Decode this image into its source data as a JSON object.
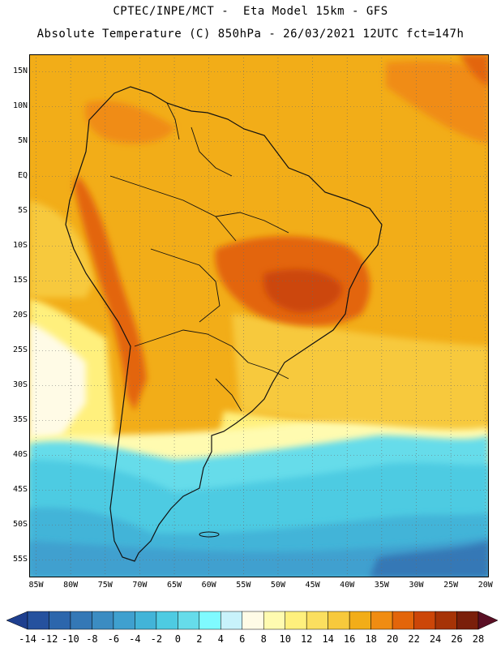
{
  "header": {
    "line1": "CPTEC/INPE/MCT -  Eta Model 15km - GFS",
    "line2": "Absolute Temperature (C) 850hPa - 26/03/2021 12UTC fct=147h"
  },
  "latitude_labels": [
    "15N",
    "10N",
    "5N",
    "EQ",
    "5S",
    "10S",
    "15S",
    "20S",
    "25S",
    "30S",
    "35S",
    "40S",
    "45S",
    "50S",
    "55S"
  ],
  "longitude_labels": [
    "85W",
    "80W",
    "75W",
    "70W",
    "65W",
    "60W",
    "55W",
    "50W",
    "45W",
    "40W",
    "35W",
    "30W",
    "25W",
    "20W"
  ],
  "map": {
    "lat_range": [
      17.5,
      -57.5
    ],
    "lon_range": [
      -86,
      -19.5
    ],
    "gridlines": "dotted",
    "regions": [
      {
        "name": "continent-core",
        "level": 18
      },
      {
        "name": "atlantic-north",
        "level": 18
      },
      {
        "name": "andes-high",
        "level": 20
      },
      {
        "name": "brazil-heat",
        "level": 22
      },
      {
        "name": "brazil-hotspot",
        "level": 24
      },
      {
        "name": "pacific-cool",
        "level": 14
      },
      {
        "name": "south-cold",
        "level": 2
      },
      {
        "name": "far-south-cold",
        "level": -4
      }
    ]
  },
  "legend": {
    "labels": [
      "-14",
      "-12",
      "-10",
      "-8",
      "-6",
      "-4",
      "-2",
      "0",
      "2",
      "4",
      "6",
      "8",
      "10",
      "12",
      "14",
      "16",
      "18",
      "20",
      "22",
      "24",
      "26",
      "28"
    ],
    "colors": [
      "#1e3f8f",
      "#25519e",
      "#2c66ac",
      "#3478b6",
      "#3b8cc2",
      "#3fa0cf",
      "#42b4d8",
      "#4ecbe2",
      "#66dcea",
      "#7ffaff",
      "#c8f2fb",
      "#fffbe6",
      "#fffbb0",
      "#fff07d",
      "#fbdf5f",
      "#f7c93c",
      "#f2ad18",
      "#f08c12",
      "#e3650a",
      "#cc4608",
      "#a63306",
      "#7a1f0a",
      "#5a0f24"
    ]
  }
}
